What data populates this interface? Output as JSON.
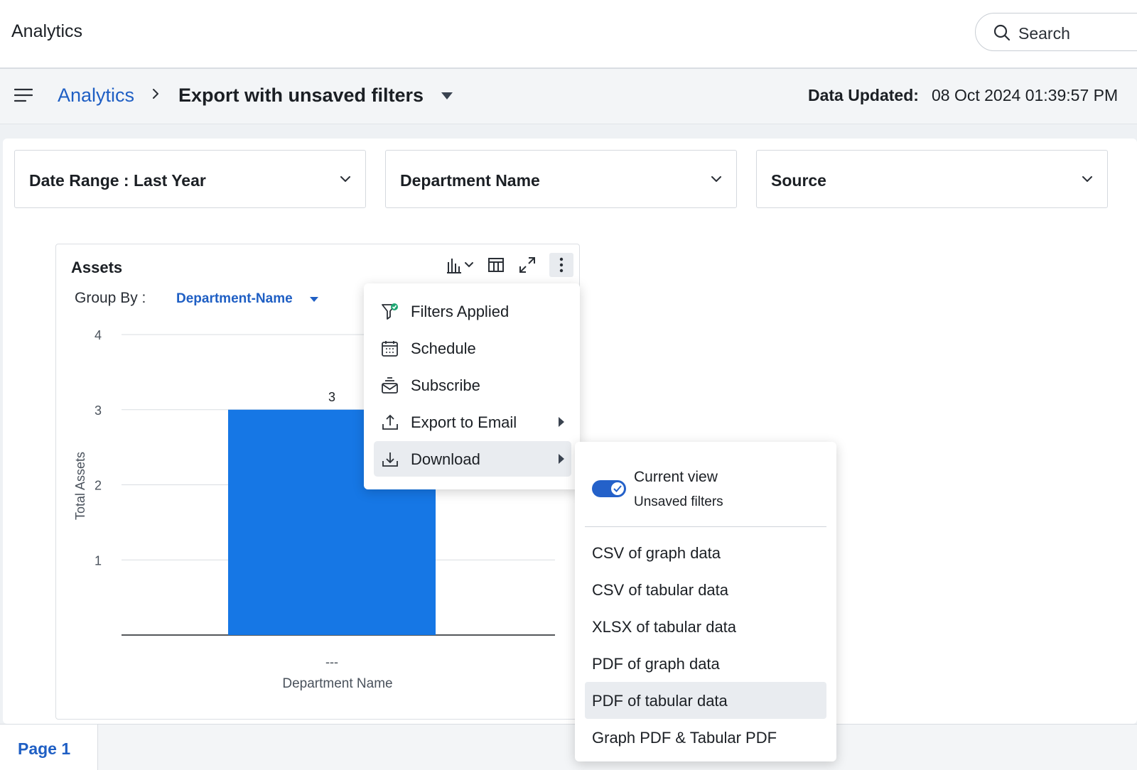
{
  "header": {
    "app_title": "Analytics",
    "search_label": "Search"
  },
  "breadcrumb": {
    "parent": "Analytics",
    "current": "Export with unsaved filters",
    "data_updated_label": "Data Updated:",
    "data_updated_value": "08 Oct 2024 01:39:57 PM"
  },
  "filters": [
    {
      "label": "Date Range :  Last Year"
    },
    {
      "label": "Department Name"
    },
    {
      "label": "Source"
    }
  ],
  "widget": {
    "title": "Assets",
    "group_by_label": "Group By :",
    "group_by_value": "Department-Name"
  },
  "chart_data": {
    "type": "bar",
    "categories": [
      "---"
    ],
    "values": [
      3
    ],
    "data_labels": [
      "3"
    ],
    "xlabel": "Department Name",
    "ylabel": "Total Assets",
    "ylim": [
      0,
      4
    ],
    "yticks": [
      1,
      2,
      3,
      4
    ],
    "bar_color": "#1677e5",
    "grid": true
  },
  "menu": {
    "items": [
      {
        "label": "Filters Applied",
        "icon": "filter-check-icon"
      },
      {
        "label": "Schedule",
        "icon": "calendar-icon"
      },
      {
        "label": "Subscribe",
        "icon": "subscribe-mail-icon"
      },
      {
        "label": "Export to Email",
        "icon": "upload-icon",
        "submenu": true
      },
      {
        "label": "Download",
        "icon": "download-icon",
        "submenu": true,
        "active": true
      }
    ]
  },
  "download_menu": {
    "toggle_title": "Current view",
    "toggle_subtitle": "Unsaved filters",
    "toggle_on": true,
    "items": [
      {
        "label": "CSV of graph data"
      },
      {
        "label": "CSV of tabular data"
      },
      {
        "label": "XLSX of tabular data"
      },
      {
        "label": "PDF of graph data"
      },
      {
        "label": "PDF of tabular data",
        "active": true
      },
      {
        "label": "Graph PDF & Tabular PDF"
      }
    ]
  },
  "pages": {
    "tab_label": "Page 1"
  },
  "colors": {
    "accent": "#1f5fc4",
    "bar": "#1677e5",
    "toggle": "#2461c9"
  }
}
